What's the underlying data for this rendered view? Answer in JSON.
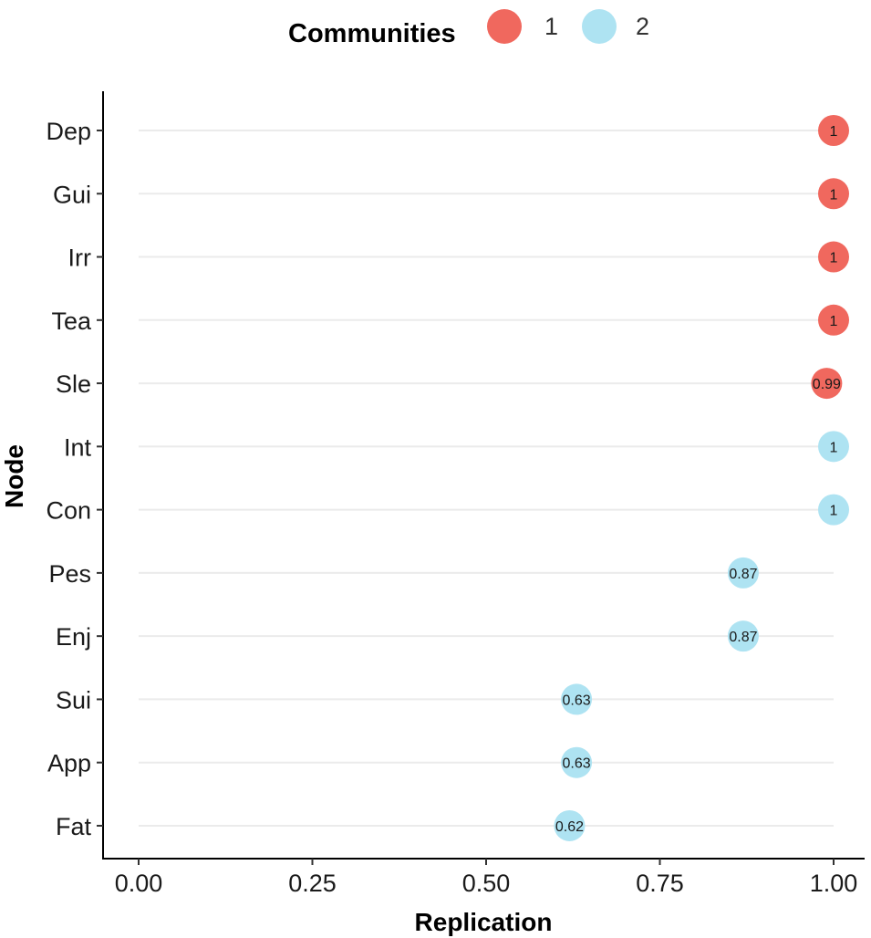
{
  "legend": {
    "title": "Communities",
    "items": [
      {
        "label": "1",
        "color": "#f0685e"
      },
      {
        "label": "2",
        "color": "#aee3f2"
      }
    ]
  },
  "chart_data": {
    "type": "scatter",
    "xlabel": "Replication",
    "ylabel": "Node",
    "xlim": [
      0,
      1
    ],
    "xticks": [
      "0.00",
      "0.25",
      "0.50",
      "0.75",
      "1.00"
    ],
    "xtick_values": [
      0,
      0.25,
      0.5,
      0.75,
      1.0
    ],
    "grid": "horizontal",
    "legend_position": "top",
    "points": [
      {
        "node": "Dep",
        "value": 1.0,
        "label": "1",
        "community": "1"
      },
      {
        "node": "Gui",
        "value": 1.0,
        "label": "1",
        "community": "1"
      },
      {
        "node": "Irr",
        "value": 1.0,
        "label": "1",
        "community": "1"
      },
      {
        "node": "Tea",
        "value": 1.0,
        "label": "1",
        "community": "1"
      },
      {
        "node": "Sle",
        "value": 0.99,
        "label": "0.99",
        "community": "1"
      },
      {
        "node": "Int",
        "value": 1.0,
        "label": "1",
        "community": "2"
      },
      {
        "node": "Con",
        "value": 1.0,
        "label": "1",
        "community": "2"
      },
      {
        "node": "Pes",
        "value": 0.87,
        "label": "0.87",
        "community": "2"
      },
      {
        "node": "Enj",
        "value": 0.87,
        "label": "0.87",
        "community": "2"
      },
      {
        "node": "Sui",
        "value": 0.63,
        "label": "0.63",
        "community": "2"
      },
      {
        "node": "App",
        "value": 0.63,
        "label": "0.63",
        "community": "2"
      },
      {
        "node": "Fat",
        "value": 0.62,
        "label": "0.62",
        "community": "2"
      }
    ]
  }
}
